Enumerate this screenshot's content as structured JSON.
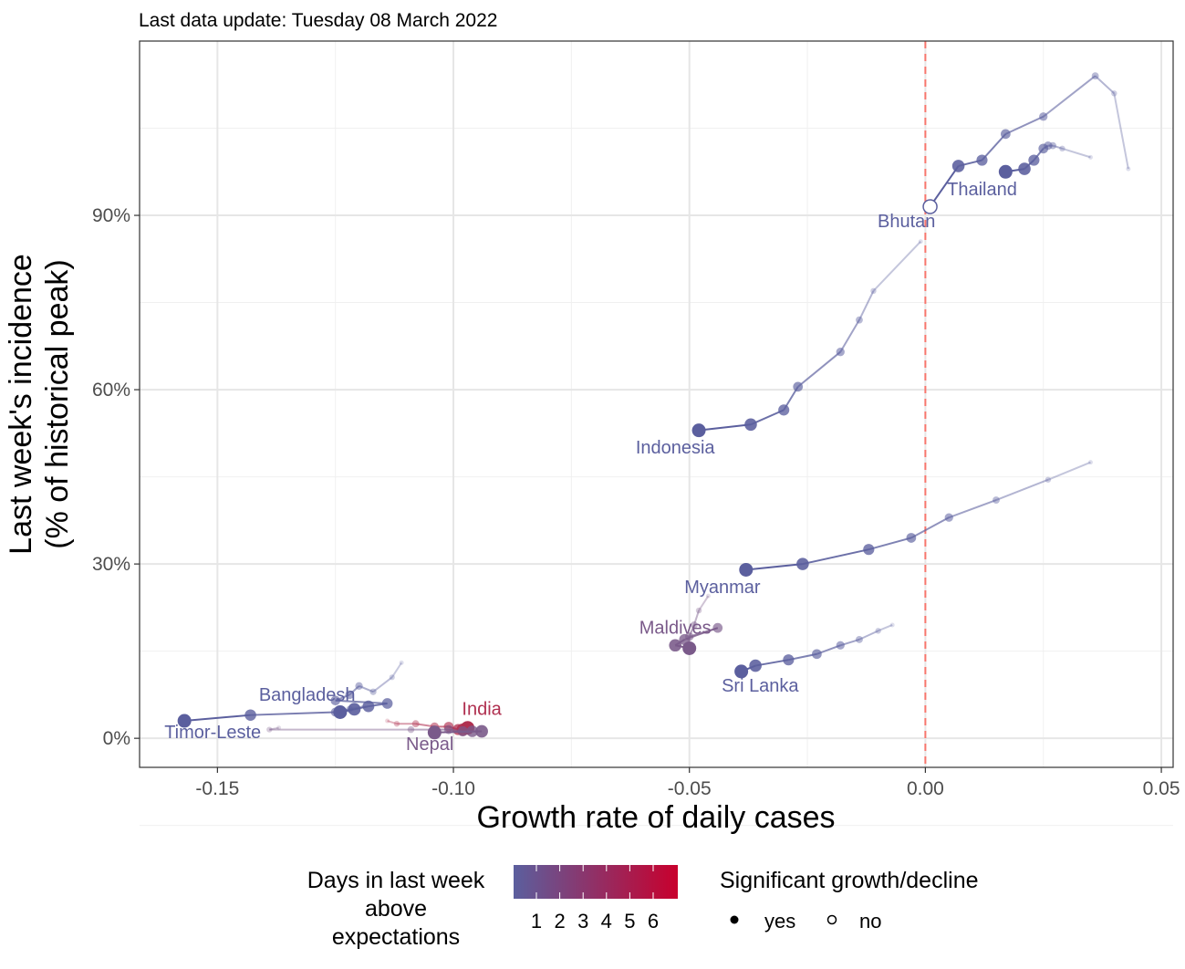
{
  "chart_data": {
    "type": "scatter",
    "subtitle": "Last data update: Tuesday 08 March 2022",
    "xlabel": "Growth rate of daily cases",
    "ylabel_line1": "Last week's incidence",
    "ylabel_line2": "(% of historical peak)",
    "xlim": [
      -0.1665,
      0.0525
    ],
    "ylim": [
      -5,
      120
    ],
    "x_ticks": [
      -0.15,
      -0.1,
      -0.05,
      0.0,
      0.05
    ],
    "x_tick_labels": [
      "-0.15",
      "-0.10",
      "-0.05",
      "0.00",
      "0.05"
    ],
    "y_ticks": [
      0,
      30,
      60,
      90
    ],
    "y_tick_labels": [
      "0%",
      "30%",
      "60%",
      "90%"
    ],
    "reference_line_x": 0,
    "reference_line_color": "#f8766d",
    "grid": true,
    "legend": {
      "color_title_lines": [
        "Days in last week",
        "above",
        "expectations"
      ],
      "color_labels": [
        "1",
        "2",
        "3",
        "4",
        "5",
        "6"
      ],
      "color_low": "#5b5f9e",
      "color_high": "#c8002d",
      "shape_title": "Significant growth/decline",
      "shape_labels": [
        "yes",
        "no"
      ],
      "position": "bottom"
    },
    "series": [
      {
        "name": "Thailand",
        "color": "#5b5f9e",
        "x": [
          0.043,
          0.04,
          0.036,
          0.025,
          0.017,
          0.012,
          0.007,
          0.001
        ],
        "y": [
          98,
          111,
          114,
          107,
          104,
          99.5,
          98.5,
          91.5
        ],
        "significant": [
          true,
          true,
          true,
          true,
          true,
          true,
          true,
          false
        ],
        "label_x": 0.012,
        "label_y": 93.5
      },
      {
        "name": "Bhutan",
        "color": "#5b5f9e",
        "x": [
          0.035,
          0.029,
          0.027,
          0.026,
          0.025,
          0.023,
          0.021,
          0.017
        ],
        "y": [
          100,
          101.5,
          102,
          102,
          101.5,
          99.5,
          98,
          97.5
        ],
        "significant": [
          true,
          true,
          true,
          true,
          true,
          true,
          true,
          true
        ],
        "label_x": -0.004,
        "label_y": 88
      },
      {
        "name": "Indonesia",
        "color": "#5b5f9e",
        "x": [
          -0.001,
          -0.011,
          -0.014,
          -0.018,
          -0.027,
          -0.03,
          -0.037,
          -0.048
        ],
        "y": [
          85.5,
          77,
          72,
          66.5,
          60.5,
          56.5,
          54,
          53
        ],
        "significant": [
          true,
          true,
          true,
          true,
          true,
          true,
          true,
          true
        ],
        "label_x": -0.053,
        "label_y": 49
      },
      {
        "name": "Myanmar",
        "color": "#5b5f9e",
        "x": [
          0.035,
          0.026,
          0.015,
          0.005,
          -0.003,
          -0.012,
          -0.026,
          -0.038
        ],
        "y": [
          47.5,
          44.5,
          41,
          38,
          34.5,
          32.5,
          30,
          29
        ],
        "significant": [
          true,
          true,
          true,
          true,
          true,
          true,
          true,
          true
        ],
        "label_x": -0.043,
        "label_y": 25
      },
      {
        "name": "Maldives",
        "color": "#7a5a8a",
        "x": [
          -0.046,
          -0.048,
          -0.049,
          -0.05,
          -0.044,
          -0.051,
          -0.053,
          -0.05
        ],
        "y": [
          24.5,
          22,
          19.5,
          17.5,
          19,
          17,
          16,
          15.5
        ],
        "significant": [
          true,
          true,
          true,
          true,
          true,
          true,
          true,
          true
        ],
        "label_x": -0.053,
        "label_y": 18
      },
      {
        "name": "Sri Lanka",
        "color": "#5b5f9e",
        "x": [
          -0.007,
          -0.01,
          -0.014,
          -0.018,
          -0.023,
          -0.029,
          -0.036,
          -0.039
        ],
        "y": [
          19.5,
          18.5,
          17,
          16,
          14.5,
          13.5,
          12.5,
          11.5
        ],
        "significant": [
          true,
          true,
          true,
          true,
          true,
          true,
          true,
          true
        ],
        "label_x": -0.035,
        "label_y": 8
      },
      {
        "name": "Bangladesh",
        "color": "#5b5f9e",
        "x": [
          -0.111,
          -0.113,
          -0.117,
          -0.12,
          -0.122,
          -0.125,
          -0.114,
          -0.118,
          -0.121,
          -0.124
        ],
        "y": [
          13,
          10.5,
          8,
          9,
          7.5,
          6.5,
          6,
          5.5,
          5,
          4.5
        ],
        "significant": [
          true,
          true,
          true,
          true,
          true,
          true,
          true,
          true,
          true,
          true
        ],
        "label_x": -0.131,
        "label_y": 6.5
      },
      {
        "name": "Timor-Leste",
        "color": "#5b5f9e",
        "x": [
          -0.119,
          -0.122,
          -0.125,
          -0.143,
          -0.157
        ],
        "y": [
          5.5,
          5,
          4.5,
          4,
          3
        ],
        "significant": [
          true,
          true,
          true,
          true,
          true
        ],
        "label_x": -0.151,
        "label_y": 0
      },
      {
        "name": "India",
        "color": "#b03050",
        "x": [
          -0.114,
          -0.112,
          -0.108,
          -0.104,
          -0.101,
          -0.099,
          -0.098,
          -0.097
        ],
        "y": [
          3,
          2.5,
          2.5,
          2,
          2,
          1.5,
          1.5,
          1.8
        ],
        "significant": [
          true,
          true,
          true,
          true,
          true,
          true,
          true,
          true
        ],
        "label_x": -0.094,
        "label_y": 4
      },
      {
        "name": "Nepal",
        "color": "#7a5a8a",
        "x": [
          -0.137,
          -0.139,
          -0.109,
          -0.104,
          -0.101,
          -0.098,
          -0.096,
          -0.094,
          -0.104
        ],
        "y": [
          1.8,
          1.5,
          1.5,
          1.5,
          1.5,
          1.2,
          1.2,
          1.2,
          1
        ],
        "significant": [
          true,
          true,
          true,
          true,
          true,
          true,
          true,
          true,
          true
        ],
        "label_x": -0.105,
        "label_y": -2
      }
    ]
  }
}
